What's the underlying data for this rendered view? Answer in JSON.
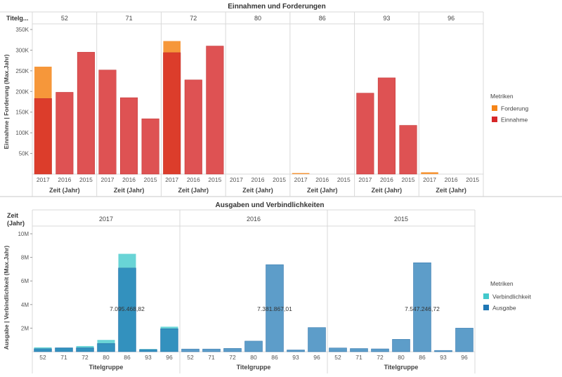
{
  "top": {
    "title": "Einnahmen und Forderungen",
    "row_header": "Titelg...",
    "y_axis_label": "Einnahme  |  Forderung (Max.Jahr)",
    "x_axis_label": "Zeit (Jahr)",
    "legend_title": "Metriken",
    "legend": [
      {
        "label": "Forderung",
        "color": "#f58518"
      },
      {
        "label": "Einnahme",
        "color": "#d62728"
      }
    ]
  },
  "bottom": {
    "title": "Ausgaben und Verbindlichkeiten",
    "row_header": "Zeit (Jahr)",
    "y_axis_label": "Ausgabe  |  Verbindlichkeit (Max.Jahr)",
    "x_axis_label": "Titelgruppe",
    "legend_title": "Metriken",
    "legend": [
      {
        "label": "Verbindlichkeit",
        "color": "#43c9cc"
      },
      {
        "label": "Ausgabe",
        "color": "#1f77b4"
      }
    ]
  },
  "chart_data": [
    {
      "type": "bar",
      "title": "Einnahmen und Forderungen",
      "panels": [
        "52",
        "71",
        "72",
        "80",
        "86",
        "93",
        "96"
      ],
      "categories": [
        "2017",
        "2016",
        "2015"
      ],
      "y_ticks": [
        "50K",
        "100K",
        "150K",
        "200K",
        "250K",
        "300K",
        "350K"
      ],
      "ylim": [
        0,
        350000
      ],
      "series": [
        {
          "name": "Einnahme",
          "values": {
            "52": [
              183000,
              198000,
              295000
            ],
            "71": [
              252000,
              185000,
              134000
            ],
            "72": [
              294000,
              228000,
              310000
            ],
            "80": [
              0,
              0,
              0
            ],
            "86": [
              0,
              0,
              0
            ],
            "93": [
              196000,
              233000,
              118000
            ],
            "96": [
              0,
              0,
              0
            ]
          }
        },
        {
          "name": "Forderung",
          "values": {
            "52": [
              260000,
              0,
              0
            ],
            "71": [
              0,
              0,
              0
            ],
            "72": [
              322000,
              0,
              0
            ],
            "80": [
              0,
              0,
              0
            ],
            "86": [
              2500,
              0,
              0
            ],
            "93": [
              0,
              0,
              0
            ],
            "96": [
              4500,
              0,
              0
            ]
          }
        }
      ]
    },
    {
      "type": "bar",
      "title": "Ausgaben und Verbindlichkeiten",
      "panels": [
        "2017",
        "2016",
        "2015"
      ],
      "categories": [
        "52",
        "71",
        "72",
        "80",
        "86",
        "93",
        "96"
      ],
      "y_ticks": [
        "2M",
        "4M",
        "6M",
        "8M",
        "10M"
      ],
      "ylim": [
        0,
        10000000
      ],
      "series": [
        {
          "name": "Ausgabe",
          "values": {
            "2017": [
              250000,
              330000,
              330000,
              700000,
              7095468.82,
              180000,
              1950000
            ],
            "2016": [
              230000,
              230000,
              280000,
              900000,
              7381867.01,
              150000,
              2050000
            ],
            "2015": [
              320000,
              270000,
              240000,
              1050000,
              7547246.72,
              110000,
              2000000
            ]
          }
        },
        {
          "name": "Verbindlichkeit",
          "values": {
            "2017": [
              370000,
              340000,
              480000,
              1000000,
              8300000,
              230000,
              2120000
            ],
            "2016": [
              0,
              0,
              0,
              0,
              0,
              0,
              0
            ],
            "2015": [
              0,
              0,
              0,
              0,
              0,
              0,
              0
            ]
          }
        }
      ],
      "annotations": {
        "2017": "7.095.468,82",
        "2016": "7.381.867,01",
        "2015": "7.547.246,72"
      }
    }
  ]
}
